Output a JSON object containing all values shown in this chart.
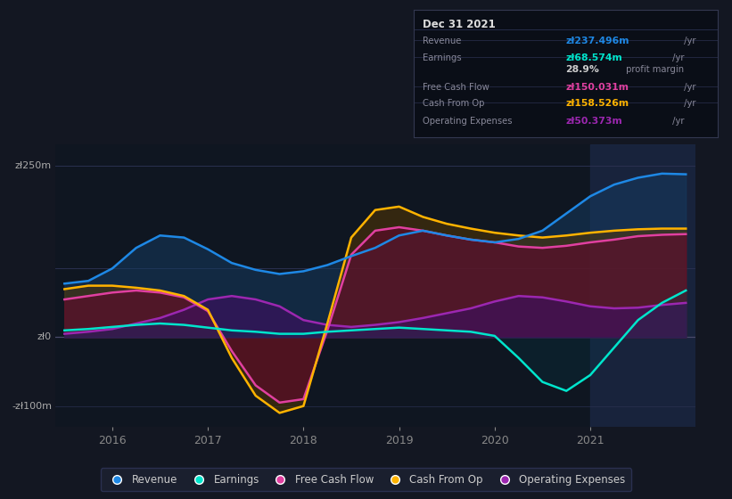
{
  "bg_color": "#131722",
  "plot_bg_color": "#0f1621",
  "series_colors": {
    "revenue": "#1e88e5",
    "earnings": "#00e5cc",
    "fcf": "#e040a0",
    "cashop": "#ffb300",
    "opex": "#9c27b0"
  },
  "series_fill_colors": {
    "revenue": "#163a5f",
    "earnings": "#004040",
    "fcf": "#6a0030",
    "cashop": "#5a3800",
    "opex": "#3d1060"
  },
  "highlight_color": "#1a2540",
  "ylim": [
    -130,
    280
  ],
  "ytick_vals": [
    -100,
    0,
    250
  ],
  "ytick_labels": [
    "-zł100m",
    "zł0",
    "zł250m"
  ],
  "xlim": [
    2015.4,
    2022.1
  ],
  "xtick_vals": [
    2016,
    2017,
    2018,
    2019,
    2020,
    2021
  ],
  "xtick_labels": [
    "2016",
    "2017",
    "2018",
    "2019",
    "2020",
    "2021"
  ],
  "highlight_x_start": 2021.0,
  "infobox": {
    "date": "Dec 31 2021",
    "rows": [
      {
        "label": "Revenue",
        "value": "zł237.496m",
        "unit": " /yr",
        "vcolor": "#1e88e5"
      },
      {
        "label": "Earnings",
        "value": "zł68.574m",
        "unit": " /yr",
        "vcolor": "#00e5cc"
      },
      {
        "label": "",
        "value": "28.9%",
        "unit": " profit margin",
        "vcolor": "#cccccc"
      },
      {
        "label": "Free Cash Flow",
        "value": "zł150.031m",
        "unit": " /yr",
        "vcolor": "#e040a0"
      },
      {
        "label": "Cash From Op",
        "value": "zł158.526m",
        "unit": " /yr",
        "vcolor": "#ffb300"
      },
      {
        "label": "Operating Expenses",
        "value": "zł50.373m",
        "unit": " /yr",
        "vcolor": "#9c27b0"
      }
    ]
  },
  "legend_items": [
    {
      "label": "Revenue",
      "color": "#1e88e5"
    },
    {
      "label": "Earnings",
      "color": "#00e5cc"
    },
    {
      "label": "Free Cash Flow",
      "color": "#e040a0"
    },
    {
      "label": "Cash From Op",
      "color": "#ffb300"
    },
    {
      "label": "Operating Expenses",
      "color": "#9c27b0"
    }
  ]
}
